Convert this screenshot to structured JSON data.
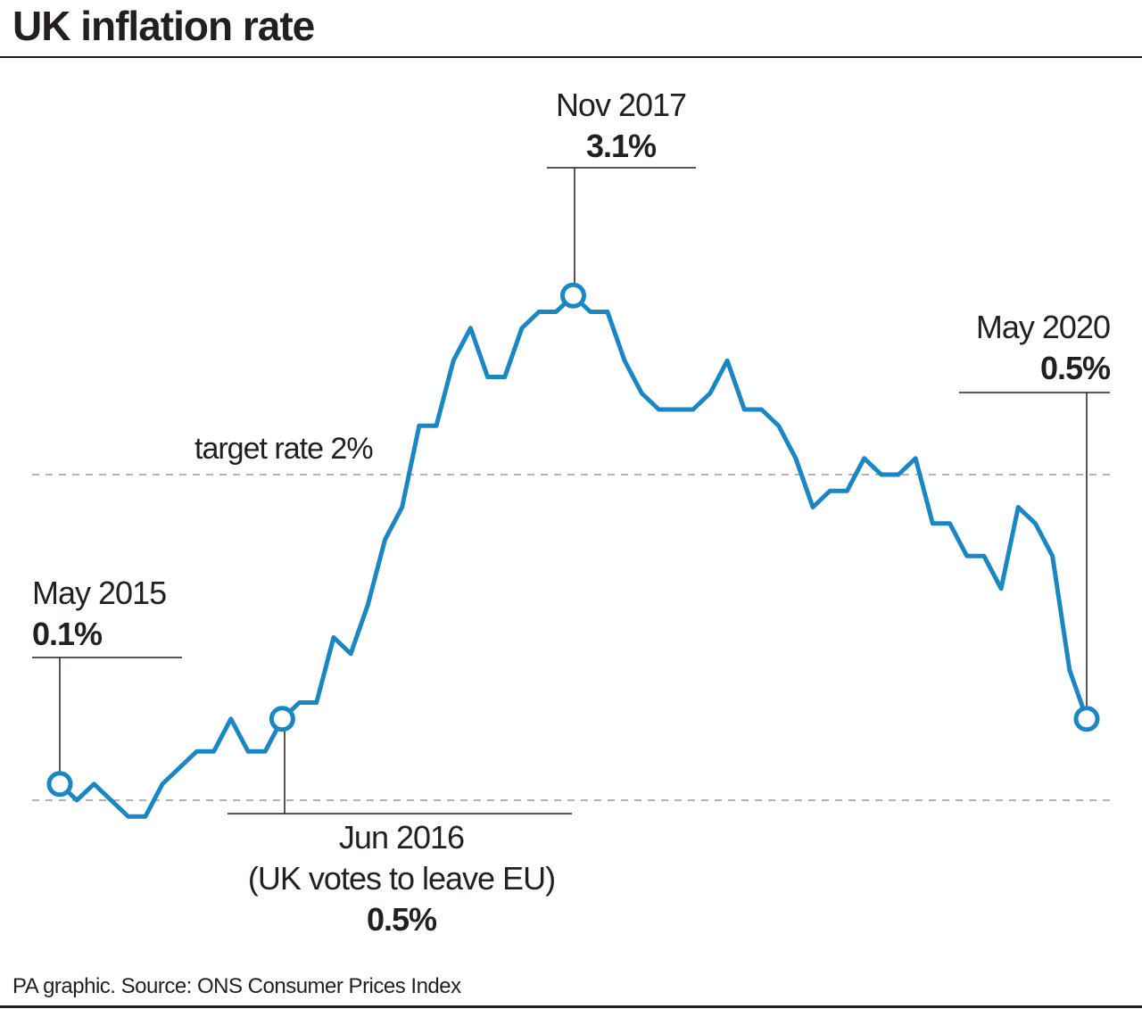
{
  "title": "UK inflation rate",
  "source": "PA graphic. Source: ONS Consumer Prices Index",
  "colors": {
    "line": "#1a86c2",
    "text": "#231f20",
    "dashed": "#999999"
  },
  "chart_data": {
    "type": "line",
    "title": "UK inflation rate",
    "xlabel": "",
    "ylabel": "",
    "x_start": "May 2015",
    "x_end": "May 2020",
    "x_unit": "month",
    "ylim": [
      -0.1,
      3.1
    ],
    "grid": false,
    "series": [
      {
        "values": [
          0.1,
          0.0,
          0.1,
          0.0,
          -0.1,
          -0.1,
          0.1,
          0.2,
          0.3,
          0.3,
          0.5,
          0.3,
          0.3,
          0.5,
          0.6,
          0.6,
          1.0,
          0.9,
          1.2,
          1.6,
          1.8,
          2.3,
          2.3,
          2.7,
          2.9,
          2.6,
          2.6,
          2.9,
          3.0,
          3.0,
          3.1,
          3.0,
          3.0,
          2.7,
          2.5,
          2.4,
          2.4,
          2.4,
          2.5,
          2.7,
          2.4,
          2.4,
          2.3,
          2.1,
          1.8,
          1.9,
          1.9,
          2.1,
          2.0,
          2.0,
          2.1,
          1.7,
          1.7,
          1.5,
          1.5,
          1.3,
          1.8,
          1.7,
          1.5,
          0.8,
          0.5
        ]
      }
    ],
    "reference_lines": [
      {
        "value": 2,
        "label": "target rate 2%"
      },
      {
        "value": 0,
        "label": ""
      }
    ],
    "annotations": [
      {
        "index": 0,
        "date": "May 2015",
        "note": "",
        "value": "0.1%"
      },
      {
        "index": 13,
        "date": "Jun 2016",
        "note": "(UK votes to leave EU)",
        "value": "0.5%"
      },
      {
        "index": 30,
        "date": "Nov 2017",
        "note": "",
        "value": "3.1%"
      },
      {
        "index": 60,
        "date": "May 2020",
        "note": "",
        "value": "0.5%"
      }
    ]
  }
}
